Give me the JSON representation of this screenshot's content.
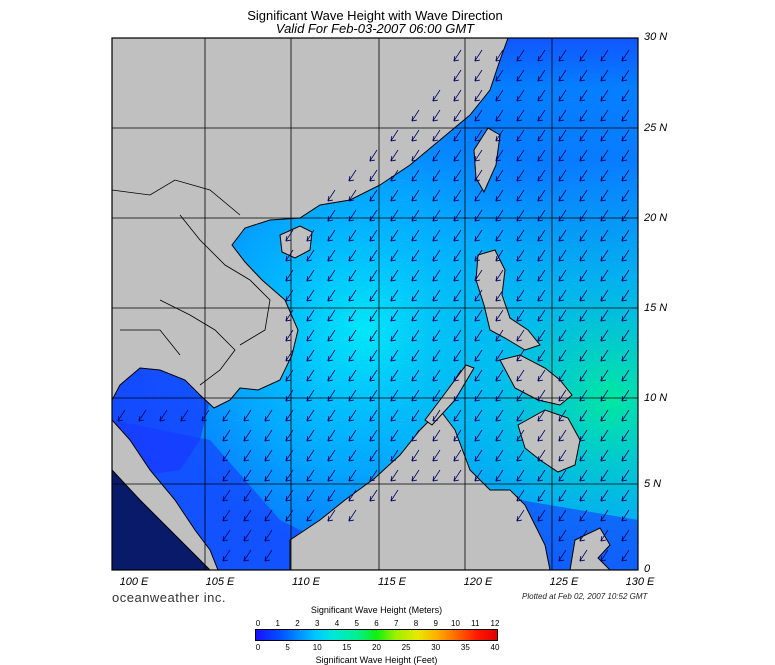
{
  "title": "Significant Wave Height with Wave Direction",
  "subtitle": "Valid For Feb-03-2007 06:00 GMT",
  "lat_labels": [
    "30 N",
    "25 N",
    "20 N",
    "15 N",
    "10 N",
    "5 N",
    "0"
  ],
  "lon_labels": [
    "100 E",
    "105 E",
    "110 E",
    "115 E",
    "120 E",
    "125 E",
    "130 E"
  ],
  "brand": "oceanweather inc.",
  "plotted": "Plotted at Feb 02, 2007 10:52 GMT",
  "scale": {
    "meters_title": "Significant Wave Height (Meters)",
    "feet_title": "Significant Wave Height (Feet)",
    "meters_ticks": [
      "0",
      "1",
      "2",
      "3",
      "4",
      "5",
      "6",
      "7",
      "8",
      "9",
      "10",
      "11",
      "12"
    ],
    "feet_ticks": [
      "0",
      "5",
      "10",
      "15",
      "20",
      "25",
      "30",
      "35",
      "40"
    ]
  },
  "colors": {
    "land": "#c0c0c0",
    "sea_low": "#1a20ff",
    "sea_mid": "#00a8ff",
    "sea_high": "#00e8a0"
  },
  "arrow_direction": "southwest"
}
